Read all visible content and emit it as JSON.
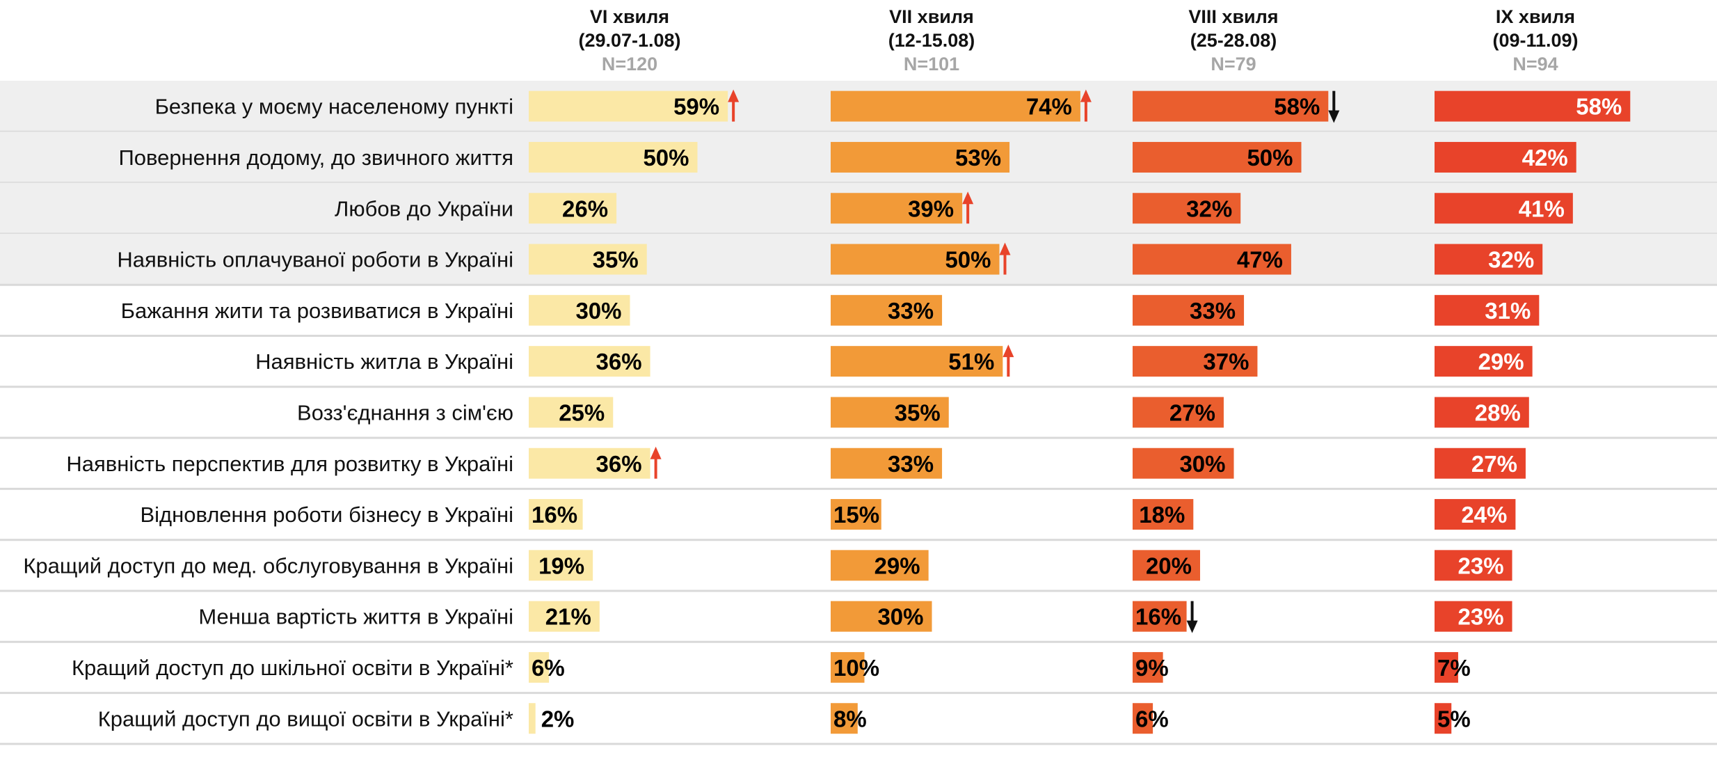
{
  "chart_data": {
    "type": "bar",
    "orientation": "horizontal",
    "unit": "%",
    "waves": [
      {
        "name": "VI хвиля",
        "dates": "(29.07-1.08)",
        "n": "N=120",
        "color": "#fbe8a6",
        "label_color": "#000000"
      },
      {
        "name": "VII хвиля",
        "dates": "(12-15.08)",
        "n": "N=101",
        "color": "#f29a38",
        "label_color": "#000000"
      },
      {
        "name": "VIII хвиля",
        "dates": "(25-28.08)",
        "n": "N=79",
        "color": "#ea5e2e",
        "label_color": "#000000"
      },
      {
        "name": "IX хвиля",
        "dates": "(09-11.09)",
        "n": "N=94",
        "color": "#e8432a",
        "label_color": "#ffffff"
      }
    ],
    "categories": [
      "Безпека у моєму населеному пункті",
      "Повернення додому, до звичного життя",
      "Любов до України",
      "Наявність оплачуваної роботи в Україні",
      "Бажання жити та розвиватися в Україні",
      "Наявність житла в Україні",
      "Возз'єднання з сім'єю",
      "Наявність перспектив для розвитку в Україні",
      "Відновлення роботи бізнесу в Україні",
      "Кращий доступ до мед. обслуговування в Україні",
      "Менша вартість життя в Україні",
      "Кращий доступ до шкільної освіти в Україні*",
      "Кращий доступ до вищої освіти в Україні*"
    ],
    "series": [
      {
        "name": "VI хвиля",
        "values": [
          59,
          50,
          26,
          35,
          30,
          36,
          25,
          36,
          16,
          19,
          21,
          6,
          2
        ],
        "value_labels": [
          "59%",
          "50%",
          "26%",
          "35%",
          "30%",
          "36%",
          "25%",
          "36%",
          "16%",
          "19%",
          "21%",
          "6%",
          "2%"
        ]
      },
      {
        "name": "VII хвиля",
        "values": [
          74,
          53,
          39,
          50,
          33,
          51,
          35,
          33,
          15,
          29,
          30,
          10,
          8
        ],
        "value_labels": [
          "74%",
          "53%",
          "39%",
          "50%",
          "33%",
          "51%",
          "35%",
          "33%",
          "15%",
          "29%",
          "30%",
          "10%",
          "8%"
        ]
      },
      {
        "name": "VIII хвиля",
        "values": [
          58,
          50,
          32,
          47,
          33,
          37,
          27,
          30,
          18,
          20,
          16,
          9,
          6
        ],
        "value_labels": [
          "58%",
          "50%",
          "32%",
          "47%",
          "33%",
          "37%",
          "27%",
          "30%",
          "18%",
          "20%",
          "16%",
          "9%",
          "6%"
        ]
      },
      {
        "name": "IX хвиля",
        "values": [
          58,
          42,
          41,
          32,
          31,
          29,
          28,
          27,
          24,
          23,
          23,
          7,
          5
        ],
        "value_labels": [
          "58%",
          "42%",
          "41%",
          "32%",
          "31%",
          "29%",
          "28%",
          "27%",
          "24%",
          "23%",
          "23%",
          "7%",
          "5%"
        ]
      }
    ],
    "change_markers": [
      {
        "series": "VI хвиля",
        "category": "Безпека у моєму населеному пункті",
        "direction": "up",
        "color": "#e8432a"
      },
      {
        "series": "VI хвиля",
        "category": "Наявність перспектив для розвитку в Україні",
        "direction": "up",
        "color": "#e8432a"
      },
      {
        "series": "VII хвиля",
        "category": "Безпека у моєму населеному пункті",
        "direction": "up",
        "color": "#e8432a"
      },
      {
        "series": "VII хвиля",
        "category": "Любов до України",
        "direction": "up",
        "color": "#e8432a"
      },
      {
        "series": "VII хвиля",
        "category": "Наявність оплачуваної роботи в Україні",
        "direction": "up",
        "color": "#e8432a"
      },
      {
        "series": "VII хвиля",
        "category": "Наявність житла в Україні",
        "direction": "up",
        "color": "#e8432a"
      },
      {
        "series": "VIII хвиля",
        "category": "Безпека у моєму населеному пункті",
        "direction": "down",
        "color": "#111111"
      },
      {
        "series": "VIII хвиля",
        "category": "Менша вартість життя в Україні",
        "direction": "down",
        "color": "#111111"
      }
    ],
    "shaded_rows": 4,
    "shade_color": "#efefef",
    "separator_color": "#d9d9d9",
    "grid": false,
    "legend": "none"
  }
}
